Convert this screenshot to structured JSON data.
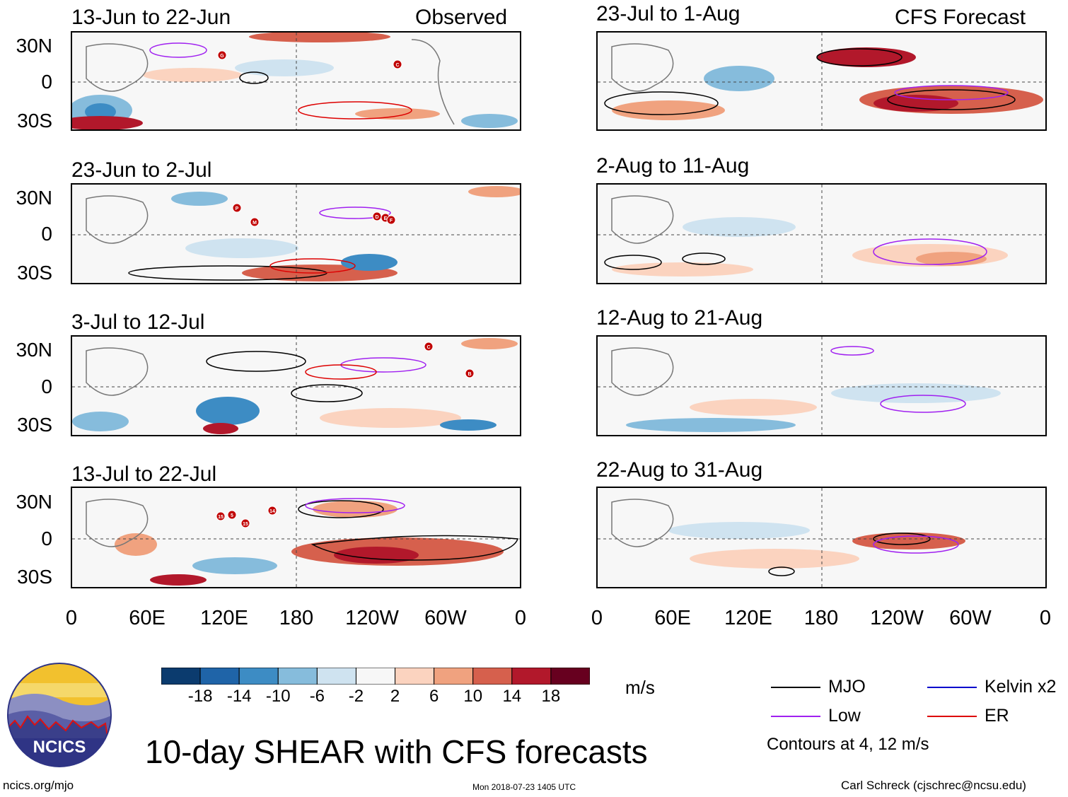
{
  "observed_label": "Observed",
  "forecast_label": "CFS Forecast",
  "panels_left": [
    {
      "title": "13-Jun to 22-Jun"
    },
    {
      "title": "23-Jun to 2-Jul"
    },
    {
      "title": "3-Jul to 12-Jul"
    },
    {
      "title": "13-Jul to 22-Jul"
    }
  ],
  "panels_right": [
    {
      "title": "23-Jul to 1-Aug"
    },
    {
      "title": "2-Aug to 11-Aug"
    },
    {
      "title": "12-Aug to 21-Aug"
    },
    {
      "title": "22-Aug to 31-Aug"
    }
  ],
  "lat_labels": [
    "30N",
    "0",
    "30S"
  ],
  "lon_labels": [
    "0",
    "60E",
    "120E",
    "180",
    "120W",
    "60W",
    "0"
  ],
  "storm_markers": {
    "panel1": [
      "G",
      "C"
    ],
    "panel2": [
      "P",
      "M",
      "D",
      "E",
      "F"
    ],
    "panel3": [
      "C",
      "B"
    ],
    "panel4": [
      "15",
      "5",
      "15",
      "14"
    ]
  },
  "colorbar": {
    "ticks": [
      "-18",
      "-14",
      "-10",
      "-6",
      "-2",
      "2",
      "6",
      "10",
      "14",
      "18"
    ],
    "colors": [
      "#0b3b6e",
      "#1f64a8",
      "#3d8cc4",
      "#86bcdc",
      "#cfe3f0",
      "#f7f7f7",
      "#fbd3bf",
      "#f0a27f",
      "#d6604d",
      "#b2182b",
      "#67001f"
    ],
    "unit": "m/s"
  },
  "legend": {
    "items": [
      {
        "label": "MJO",
        "color": "#000000"
      },
      {
        "label": "Kelvin x2",
        "color": "#0000cc"
      },
      {
        "label": "Low",
        "color": "#a020f0"
      },
      {
        "label": "ER",
        "color": "#dd0000"
      }
    ],
    "note": "Contours at 4, 12 m/s"
  },
  "logo_text": "NCICS",
  "main_title": "10-day SHEAR with CFS forecasts",
  "footer": {
    "url": "ncics.org/mjo",
    "timestamp": "Mon 2018-07-23 1405 UTC",
    "author": "Carl Schreck (cjschrec@ncsu.edu)"
  }
}
